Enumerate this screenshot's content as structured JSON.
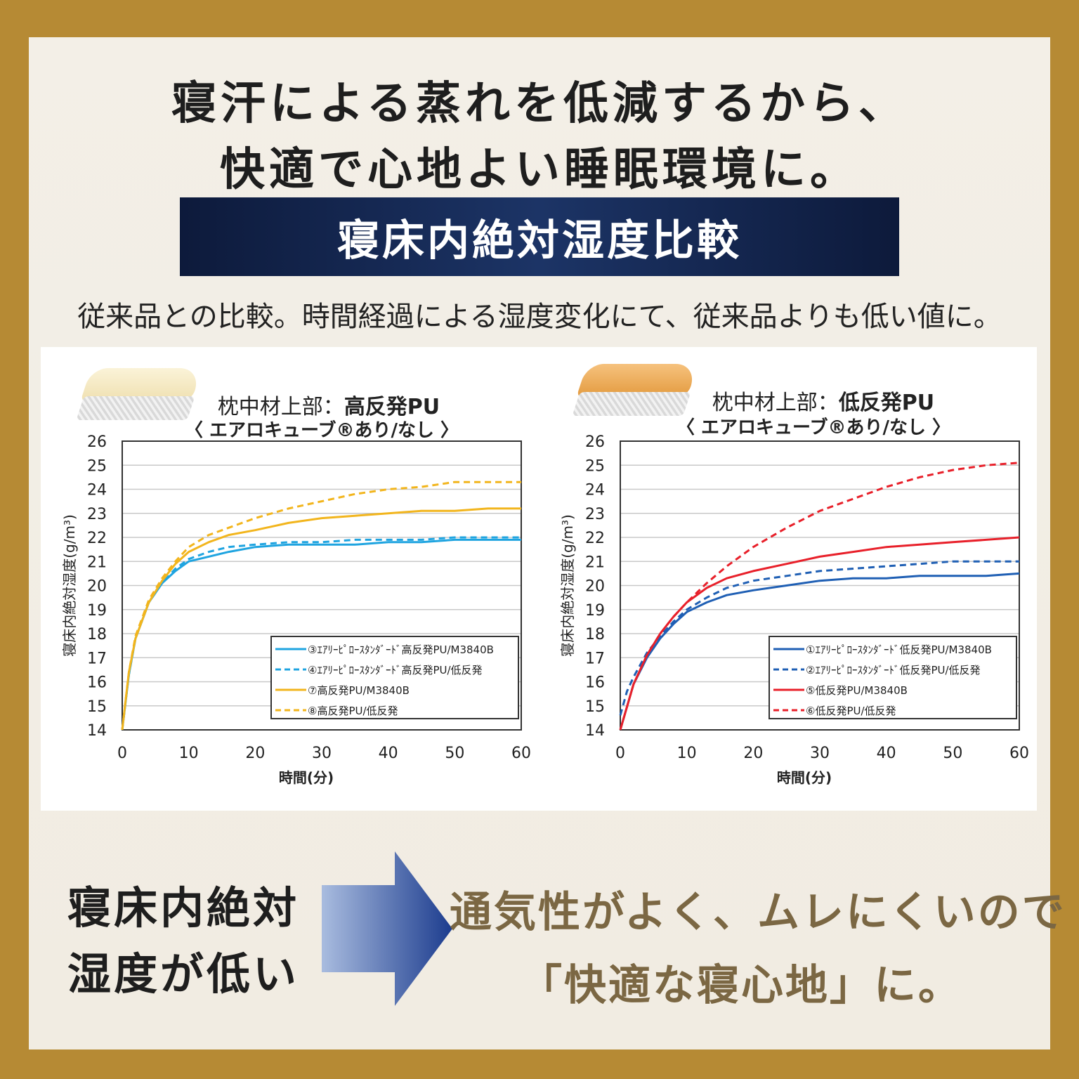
{
  "headline": {
    "line1": "寝汗による蒸れを低減するから、",
    "line2": "快適で心地よい睡眠環境に。"
  },
  "banner": {
    "label": "寝床内絶対湿度比較"
  },
  "subline": "従来品との比較。時間経過による湿度変化にて、従来品よりも低い値に。",
  "colors": {
    "background_frame": "#b68a34",
    "banner": "#1c3466",
    "blue_series": "#1fa4e0",
    "yellow_series": "#f2b51d",
    "dark_blue_series": "#1f5fb4",
    "red_series": "#e8202a",
    "tagline": "#7b6743"
  },
  "chart_data": [
    {
      "type": "line",
      "title_prefix": "枕中材上部：",
      "title_strong": "高反発PU",
      "subtitle": "〈 エアロキューブ®あり/なし 〉",
      "xlabel": "時間(分)",
      "ylabel": "寝床内絶対湿度(g/m³)",
      "xlim": [
        0,
        60
      ],
      "ylim": [
        14,
        26
      ],
      "xticks": [
        0,
        10,
        20,
        30,
        40,
        50,
        60
      ],
      "yticks": [
        14,
        15,
        16,
        17,
        18,
        19,
        20,
        21,
        22,
        23,
        24,
        25,
        26
      ],
      "grid": true,
      "legend_position": "bottom-right",
      "series": [
        {
          "name": "③ｴｱﾘｰﾋﾟﾛｰｽﾀﾝﾀﾞｰﾄﾞ高反発PU/M3840B",
          "color": "#1fa4e0",
          "dash": false,
          "x": [
            0,
            1,
            2,
            4,
            6,
            8,
            10,
            13,
            16,
            20,
            25,
            30,
            35,
            40,
            45,
            50,
            55,
            60
          ],
          "y": [
            14.0,
            16.3,
            17.8,
            19.3,
            20.1,
            20.6,
            21.0,
            21.2,
            21.4,
            21.6,
            21.7,
            21.7,
            21.7,
            21.8,
            21.8,
            21.9,
            21.9,
            21.9
          ]
        },
        {
          "name": "④ｴｱﾘｰﾋﾟﾛｰｽﾀﾝﾀﾞｰﾄﾞ高反発PU/低反発",
          "color": "#1fa4e0",
          "dash": true,
          "x": [
            0,
            1,
            2,
            4,
            6,
            8,
            10,
            13,
            16,
            20,
            25,
            30,
            35,
            40,
            45,
            50,
            55,
            60
          ],
          "y": [
            14.0,
            16.3,
            17.8,
            19.3,
            20.1,
            20.7,
            21.1,
            21.4,
            21.6,
            21.7,
            21.8,
            21.8,
            21.9,
            21.9,
            21.9,
            22.0,
            22.0,
            22.0
          ]
        },
        {
          "name": "⑦高反発PU/M3840B",
          "color": "#f2b51d",
          "dash": false,
          "x": [
            0,
            1,
            2,
            4,
            6,
            8,
            10,
            13,
            16,
            20,
            25,
            30,
            35,
            40,
            45,
            50,
            55,
            60
          ],
          "y": [
            14.0,
            16.4,
            17.8,
            19.3,
            20.2,
            20.9,
            21.4,
            21.8,
            22.1,
            22.3,
            22.6,
            22.8,
            22.9,
            23.0,
            23.1,
            23.1,
            23.2,
            23.2
          ]
        },
        {
          "name": "⑧高反発PU/低反発",
          "color": "#f2b51d",
          "dash": true,
          "x": [
            0,
            1,
            2,
            4,
            6,
            8,
            10,
            13,
            16,
            20,
            25,
            30,
            35,
            40,
            45,
            50,
            55,
            60
          ],
          "y": [
            14.0,
            16.4,
            17.9,
            19.4,
            20.3,
            21.0,
            21.6,
            22.1,
            22.4,
            22.8,
            23.2,
            23.5,
            23.8,
            24.0,
            24.1,
            24.3,
            24.3,
            24.3
          ]
        }
      ]
    },
    {
      "type": "line",
      "title_prefix": "枕中材上部：",
      "title_strong": "低反発PU",
      "subtitle": "〈 エアロキューブ®あり/なし 〉",
      "xlabel": "時間(分)",
      "ylabel": "寝床内絶対湿度(g/m³)",
      "xlim": [
        0,
        60
      ],
      "ylim": [
        14,
        26
      ],
      "xticks": [
        0,
        10,
        20,
        30,
        40,
        50,
        60
      ],
      "yticks": [
        14,
        15,
        16,
        17,
        18,
        19,
        20,
        21,
        22,
        23,
        24,
        25,
        26
      ],
      "grid": true,
      "legend_position": "bottom-right",
      "series": [
        {
          "name": "①ｴｱﾘｰﾋﾟﾛｰｽﾀﾝﾀﾞｰﾄﾞ低反発PU/M3840B",
          "color": "#1f5fb4",
          "dash": false,
          "x": [
            0,
            2,
            4,
            6,
            8,
            10,
            13,
            16,
            20,
            25,
            30,
            35,
            40,
            45,
            50,
            55,
            60
          ],
          "y": [
            14.0,
            15.9,
            17.0,
            17.8,
            18.4,
            18.9,
            19.3,
            19.6,
            19.8,
            20.0,
            20.2,
            20.3,
            20.3,
            20.4,
            20.4,
            20.4,
            20.5
          ]
        },
        {
          "name": "②ｴｱﾘｰﾋﾟﾛｰｽﾀﾝﾀﾞｰﾄﾞ低反発PU/低反発",
          "color": "#1f5fb4",
          "dash": true,
          "x": [
            0,
            1,
            2,
            4,
            6,
            8,
            10,
            13,
            16,
            20,
            25,
            30,
            35,
            40,
            45,
            50,
            55,
            60
          ],
          "y": [
            14.6,
            15.6,
            16.2,
            17.2,
            17.9,
            18.5,
            19.0,
            19.5,
            19.9,
            20.2,
            20.4,
            20.6,
            20.7,
            20.8,
            20.9,
            21.0,
            21.0,
            21.0
          ]
        },
        {
          "name": "⑤低反発PU/M3840B",
          "color": "#e8202a",
          "dash": false,
          "x": [
            0,
            2,
            4,
            6,
            8,
            10,
            13,
            16,
            20,
            25,
            30,
            35,
            40,
            45,
            50,
            55,
            60
          ],
          "y": [
            14.0,
            15.9,
            17.1,
            18.0,
            18.7,
            19.3,
            19.9,
            20.3,
            20.6,
            20.9,
            21.2,
            21.4,
            21.6,
            21.7,
            21.8,
            21.9,
            22.0
          ]
        },
        {
          "name": "⑥低反発PU/低反発",
          "color": "#e8202a",
          "dash": true,
          "x": [
            0,
            2,
            4,
            6,
            8,
            10,
            13,
            16,
            20,
            25,
            30,
            35,
            40,
            45,
            50,
            55,
            60
          ],
          "y": [
            14.0,
            15.9,
            17.1,
            18.0,
            18.7,
            19.3,
            20.1,
            20.8,
            21.6,
            22.4,
            23.1,
            23.6,
            24.1,
            24.5,
            24.8,
            25.0,
            25.1
          ]
        }
      ]
    }
  ],
  "conclusion": {
    "left_line1": "寝床内絶対",
    "left_line2": "湿度が低い",
    "right_line1": "通気性がよく、ムレにくいので",
    "right_line2": "「快適な寝心地」に。"
  }
}
